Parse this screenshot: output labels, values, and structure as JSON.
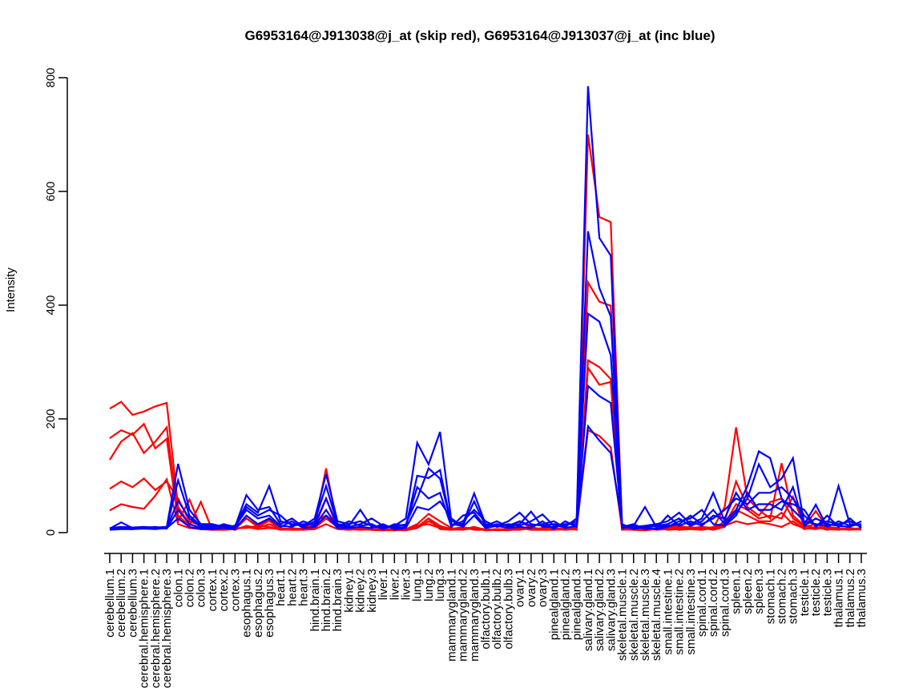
{
  "chart_data": {
    "type": "line",
    "title": "G6953164@J913038@j_at (skip red), G6953164@J913037@j_at (inc blue)",
    "ylabel": "Intensity",
    "xlabel": "",
    "ylim": [
      0,
      800
    ],
    "yticks": [
      0,
      200,
      400,
      600,
      800
    ],
    "grid": false,
    "legend_position": "none",
    "probes": {
      "red": {
        "id": "G6953164@J913038@j_at",
        "label": "skip",
        "color": "#FF0000"
      },
      "blue": {
        "id": "G6953164@J913037@j_at",
        "label": "inc",
        "color": "#0000FF"
      }
    },
    "colors": {
      "axis": "#000000",
      "background": "#FFFFFF"
    },
    "categories": [
      "cerebellum.1",
      "cerebellum.2",
      "cerebellum.3",
      "cerebral.hemisphere.1",
      "cerebral.hemisphere.2",
      "cerebral.hemisphere.3",
      "colon.1",
      "colon.2",
      "colon.3",
      "cortex.1",
      "cortex.2",
      "cortex.3",
      "esophagus.1",
      "esophagus.2",
      "esophagus.3",
      "heart.1",
      "heart.2",
      "heart.3",
      "hind.brain.1",
      "hind.brain.2",
      "hind.brain.3",
      "kidney.1",
      "kidney.2",
      "kidney.3",
      "liver.1",
      "liver.2",
      "liver.3",
      "lung.1",
      "lung.2",
      "lung.3",
      "mammarygland.1",
      "mammarygland.2",
      "mammarygland.3",
      "olfactory.bulb.1",
      "olfactory.bulb.2",
      "olfactory.bulb.3",
      "ovary.1",
      "ovary.2",
      "ovary.3",
      "pinealgland.1",
      "pinealgland.2",
      "pinealgland.3",
      "salivary.gland.1",
      "salivary.gland.2",
      "salivary.gland.3",
      "skeletal.muscle.1",
      "skeletal.muscle.2",
      "skeletal.muscle.3",
      "skeletal.muscle.4",
      "small.intestine.1",
      "small.intestine.2",
      "small.intestine.3",
      "spinal.cord.1",
      "spinal.cord.2",
      "spinal.cord.3",
      "spleen.1",
      "spleen.2",
      "spleen.3",
      "stomach.1",
      "stomach.2",
      "stomach.3",
      "testicle.1",
      "testicle.2",
      "testicle.3",
      "thalamus.1",
      "thalamus.2",
      "thalamus.3"
    ],
    "series": [
      {
        "name": "skip-red-1",
        "color": "#FF0000",
        "values": [
          218,
          230,
          207,
          213,
          222,
          228,
          45,
          15,
          8,
          8,
          6,
          7,
          25,
          12,
          22,
          8,
          6,
          7,
          20,
          30,
          15,
          8,
          6,
          5,
          4,
          5,
          6,
          15,
          33,
          20,
          8,
          6,
          10,
          5,
          6,
          5,
          20,
          8,
          6,
          6,
          8,
          12,
          700,
          555,
          546,
          8,
          6,
          5,
          8,
          10,
          12,
          8,
          10,
          8,
          45,
          185,
          60,
          40,
          25,
          122,
          30,
          12,
          8,
          10,
          8,
          6,
          8
        ]
      },
      {
        "name": "skip-red-2",
        "color": "#FF0000",
        "values": [
          166,
          180,
          172,
          191,
          148,
          165,
          20,
          58,
          10,
          6,
          5,
          6,
          25,
          10,
          21,
          5,
          6,
          5,
          15,
          113,
          12,
          6,
          5,
          6,
          5,
          4,
          5,
          10,
          25,
          12,
          6,
          5,
          8,
          4,
          5,
          4,
          8,
          5,
          5,
          5,
          6,
          10,
          440,
          406,
          399,
          6,
          5,
          4,
          6,
          8,
          10,
          6,
          8,
          6,
          20,
          90,
          45,
          30,
          54,
          60,
          25,
          10,
          38,
          8,
          6,
          5,
          6
        ]
      },
      {
        "name": "skip-red-3",
        "color": "#FF0000",
        "values": [
          128,
          160,
          175,
          140,
          160,
          185,
          30,
          12,
          54,
          5,
          8,
          5,
          12,
          8,
          15,
          6,
          5,
          8,
          10,
          60,
          8,
          5,
          6,
          5,
          4,
          5,
          4,
          8,
          20,
          10,
          5,
          8,
          6,
          6,
          4,
          5,
          6,
          10,
          5,
          8,
          5,
          6,
          303,
          291,
          270,
          5,
          6,
          8,
          5,
          6,
          8,
          10,
          6,
          10,
          15,
          50,
          40,
          25,
          30,
          25,
          63,
          10,
          15,
          6,
          5,
          8,
          5
        ]
      },
      {
        "name": "skip-red-4",
        "color": "#FF0000",
        "values": [
          77,
          90,
          80,
          95,
          75,
          90,
          60,
          20,
          12,
          10,
          6,
          8,
          8,
          12,
          10,
          5,
          8,
          6,
          8,
          25,
          10,
          8,
          5,
          6,
          5,
          6,
          5,
          12,
          15,
          8,
          6,
          10,
          5,
          5,
          6,
          6,
          10,
          6,
          8,
          5,
          8,
          5,
          290,
          260,
          265,
          6,
          5,
          6,
          8,
          5,
          6,
          8,
          8,
          5,
          10,
          40,
          30,
          20,
          20,
          35,
          15,
          8,
          6,
          10,
          6,
          8,
          6
        ]
      },
      {
        "name": "skip-red-5",
        "color": "#FF0000",
        "values": [
          39,
          50,
          45,
          42,
          65,
          94,
          15,
          8,
          6,
          5,
          5,
          6,
          10,
          6,
          8,
          6,
          5,
          5,
          6,
          15,
          6,
          5,
          8,
          5,
          6,
          4,
          6,
          10,
          25,
          6,
          5,
          6,
          8,
          6,
          5,
          5,
          5,
          8,
          6,
          6,
          5,
          8,
          180,
          170,
          150,
          5,
          8,
          5,
          6,
          8,
          5,
          6,
          5,
          8,
          12,
          20,
          15,
          18,
          15,
          10,
          20,
          6,
          10,
          5,
          8,
          5,
          8
        ]
      },
      {
        "name": "inc-blue-1",
        "color": "#0000FF",
        "values": [
          8,
          10,
          9,
          10,
          9,
          10,
          121,
          40,
          15,
          15,
          10,
          12,
          50,
          35,
          82,
          20,
          15,
          12,
          25,
          103,
          20,
          15,
          20,
          12,
          10,
          12,
          25,
          158,
          120,
          177,
          20,
          15,
          69,
          15,
          12,
          20,
          35,
          15,
          12,
          15,
          12,
          20,
          785,
          518,
          487,
          12,
          10,
          12,
          15,
          20,
          35,
          15,
          25,
          70,
          20,
          40,
          82,
          143,
          131,
          60,
          40,
          20,
          15,
          12,
          82,
          15,
          12
        ]
      },
      {
        "name": "inc-blue-2",
        "color": "#0000FF",
        "values": [
          7,
          18,
          8,
          8,
          7,
          9,
          92,
          30,
          12,
          12,
          8,
          10,
          66,
          40,
          45,
          15,
          25,
          10,
          20,
          82,
          15,
          12,
          40,
          10,
          8,
          10,
          15,
          60,
          113,
          95,
          15,
          12,
          55,
          12,
          20,
          10,
          15,
          37,
          10,
          10,
          15,
          15,
          530,
          430,
          380,
          10,
          8,
          10,
          12,
          15,
          25,
          12,
          20,
          40,
          15,
          35,
          60,
          120,
          80,
          95,
          131,
          15,
          49,
          10,
          20,
          12,
          15
        ]
      },
      {
        "name": "inc-blue-3",
        "color": "#0000FF",
        "values": [
          6,
          8,
          7,
          9,
          8,
          8,
          56,
          25,
          10,
          10,
          12,
          8,
          45,
          30,
          40,
          30,
          12,
          15,
          15,
          60,
          12,
          10,
          15,
          25,
          12,
          8,
          10,
          100,
          96,
          110,
          12,
          20,
          40,
          20,
          10,
          15,
          12,
          20,
          32,
          12,
          10,
          25,
          385,
          371,
          312,
          8,
          12,
          45,
          10,
          12,
          15,
          30,
          15,
          25,
          40,
          60,
          50,
          70,
          70,
          80,
          60,
          30,
          12,
          20,
          15,
          20,
          10
        ]
      },
      {
        "name": "inc-blue-4",
        "color": "#0000FF",
        "values": [
          6,
          7,
          6,
          8,
          10,
          7,
          40,
          15,
          8,
          8,
          15,
          10,
          40,
          25,
          30,
          12,
          10,
          20,
          12,
          40,
          10,
          20,
          12,
          15,
          6,
          15,
          12,
          80,
          60,
          70,
          10,
          30,
          35,
          10,
          15,
          12,
          20,
          12,
          15,
          20,
          8,
          12,
          258,
          240,
          228,
          10,
          15,
          6,
          8,
          30,
          12,
          20,
          12,
          30,
          25,
          70,
          40,
          50,
          50,
          40,
          80,
          12,
          25,
          15,
          12,
          10,
          20
        ]
      },
      {
        "name": "inc-blue-5",
        "color": "#0000FF",
        "values": [
          5,
          6,
          6,
          7,
          6,
          8,
          25,
          10,
          6,
          6,
          8,
          6,
          30,
          15,
          25,
          10,
          20,
          8,
          10,
          30,
          8,
          8,
          10,
          8,
          15,
          6,
          8,
          45,
          40,
          55,
          25,
          10,
          30,
          8,
          12,
          8,
          10,
          8,
          20,
          6,
          20,
          10,
          187,
          162,
          140,
          15,
          6,
          10,
          6,
          10,
          20,
          25,
          40,
          15,
          12,
          30,
          70,
          40,
          40,
          55,
          50,
          40,
          10,
          30,
          10,
          25,
          8
        ]
      }
    ]
  }
}
